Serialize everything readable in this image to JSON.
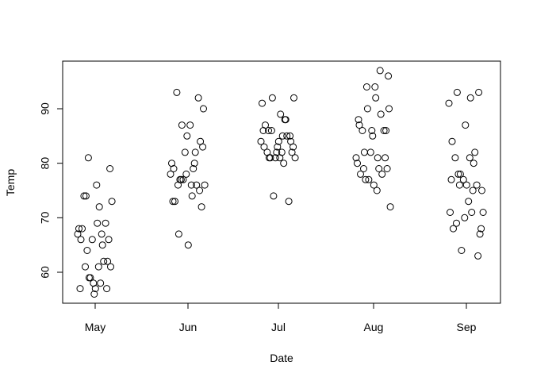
{
  "chart_data": {
    "type": "scatter",
    "title": "",
    "xlabel": "Date",
    "ylabel": "Temp",
    "x_axis_kind": "month-jittered",
    "x_tick_labels": [
      "May",
      "Jun",
      "Jul",
      "Aug",
      "Sep"
    ],
    "y_ticks": [
      60,
      70,
      80,
      90
    ],
    "y_tick_labels": [
      "60",
      "70",
      "80",
      "90"
    ],
    "ylim": [
      54.5,
      98.5
    ],
    "grid": false,
    "legend": "none",
    "marker": "open-circle",
    "points": [
      {
        "x": "May",
        "y": 67
      },
      {
        "x": "May",
        "y": 72
      },
      {
        "x": "May",
        "y": 74
      },
      {
        "x": "May",
        "y": 62
      },
      {
        "x": "May",
        "y": 56
      },
      {
        "x": "May",
        "y": 66
      },
      {
        "x": "May",
        "y": 65
      },
      {
        "x": "May",
        "y": 59
      },
      {
        "x": "May",
        "y": 61
      },
      {
        "x": "May",
        "y": 69
      },
      {
        "x": "May",
        "y": 74
      },
      {
        "x": "May",
        "y": 69
      },
      {
        "x": "May",
        "y": 66
      },
      {
        "x": "May",
        "y": 68
      },
      {
        "x": "May",
        "y": 58
      },
      {
        "x": "May",
        "y": 64
      },
      {
        "x": "May",
        "y": 66
      },
      {
        "x": "May",
        "y": 57
      },
      {
        "x": "May",
        "y": 68
      },
      {
        "x": "May",
        "y": 62
      },
      {
        "x": "May",
        "y": 59
      },
      {
        "x": "May",
        "y": 73
      },
      {
        "x": "May",
        "y": 61
      },
      {
        "x": "May",
        "y": 61
      },
      {
        "x": "May",
        "y": 57
      },
      {
        "x": "May",
        "y": 58
      },
      {
        "x": "May",
        "y": 57
      },
      {
        "x": "May",
        "y": 67
      },
      {
        "x": "May",
        "y": 81
      },
      {
        "x": "May",
        "y": 79
      },
      {
        "x": "May",
        "y": 76
      },
      {
        "x": "Jun",
        "y": 78
      },
      {
        "x": "Jun",
        "y": 74
      },
      {
        "x": "Jun",
        "y": 67
      },
      {
        "x": "Jun",
        "y": 84
      },
      {
        "x": "Jun",
        "y": 85
      },
      {
        "x": "Jun",
        "y": 79
      },
      {
        "x": "Jun",
        "y": 82
      },
      {
        "x": "Jun",
        "y": 87
      },
      {
        "x": "Jun",
        "y": 90
      },
      {
        "x": "Jun",
        "y": 87
      },
      {
        "x": "Jun",
        "y": 93
      },
      {
        "x": "Jun",
        "y": 92
      },
      {
        "x": "Jun",
        "y": 82
      },
      {
        "x": "Jun",
        "y": 80
      },
      {
        "x": "Jun",
        "y": 79
      },
      {
        "x": "Jun",
        "y": 77
      },
      {
        "x": "Jun",
        "y": 72
      },
      {
        "x": "Jun",
        "y": 65
      },
      {
        "x": "Jun",
        "y": 73
      },
      {
        "x": "Jun",
        "y": 76
      },
      {
        "x": "Jun",
        "y": 77
      },
      {
        "x": "Jun",
        "y": 76
      },
      {
        "x": "Jun",
        "y": 76
      },
      {
        "x": "Jun",
        "y": 76
      },
      {
        "x": "Jun",
        "y": 75
      },
      {
        "x": "Jun",
        "y": 78
      },
      {
        "x": "Jun",
        "y": 73
      },
      {
        "x": "Jun",
        "y": 80
      },
      {
        "x": "Jun",
        "y": 77
      },
      {
        "x": "Jun",
        "y": 83
      },
      {
        "x": "Jul",
        "y": 84
      },
      {
        "x": "Jul",
        "y": 85
      },
      {
        "x": "Jul",
        "y": 81
      },
      {
        "x": "Jul",
        "y": 84
      },
      {
        "x": "Jul",
        "y": 83
      },
      {
        "x": "Jul",
        "y": 83
      },
      {
        "x": "Jul",
        "y": 88
      },
      {
        "x": "Jul",
        "y": 92
      },
      {
        "x": "Jul",
        "y": 92
      },
      {
        "x": "Jul",
        "y": 89
      },
      {
        "x": "Jul",
        "y": 82
      },
      {
        "x": "Jul",
        "y": 73
      },
      {
        "x": "Jul",
        "y": 81
      },
      {
        "x": "Jul",
        "y": 91
      },
      {
        "x": "Jul",
        "y": 80
      },
      {
        "x": "Jul",
        "y": 81
      },
      {
        "x": "Jul",
        "y": 82
      },
      {
        "x": "Jul",
        "y": 84
      },
      {
        "x": "Jul",
        "y": 87
      },
      {
        "x": "Jul",
        "y": 85
      },
      {
        "x": "Jul",
        "y": 74
      },
      {
        "x": "Jul",
        "y": 81
      },
      {
        "x": "Jul",
        "y": 82
      },
      {
        "x": "Jul",
        "y": 86
      },
      {
        "x": "Jul",
        "y": 85
      },
      {
        "x": "Jul",
        "y": 82
      },
      {
        "x": "Jul",
        "y": 86
      },
      {
        "x": "Jul",
        "y": 88
      },
      {
        "x": "Jul",
        "y": 86
      },
      {
        "x": "Jul",
        "y": 83
      },
      {
        "x": "Jul",
        "y": 81
      },
      {
        "x": "Aug",
        "y": 81
      },
      {
        "x": "Aug",
        "y": 81
      },
      {
        "x": "Aug",
        "y": 82
      },
      {
        "x": "Aug",
        "y": 86
      },
      {
        "x": "Aug",
        "y": 85
      },
      {
        "x": "Aug",
        "y": 87
      },
      {
        "x": "Aug",
        "y": 89
      },
      {
        "x": "Aug",
        "y": 90
      },
      {
        "x": "Aug",
        "y": 90
      },
      {
        "x": "Aug",
        "y": 92
      },
      {
        "x": "Aug",
        "y": 86
      },
      {
        "x": "Aug",
        "y": 86
      },
      {
        "x": "Aug",
        "y": 82
      },
      {
        "x": "Aug",
        "y": 80
      },
      {
        "x": "Aug",
        "y": 79
      },
      {
        "x": "Aug",
        "y": 77
      },
      {
        "x": "Aug",
        "y": 79
      },
      {
        "x": "Aug",
        "y": 76
      },
      {
        "x": "Aug",
        "y": 78
      },
      {
        "x": "Aug",
        "y": 78
      },
      {
        "x": "Aug",
        "y": 77
      },
      {
        "x": "Aug",
        "y": 72
      },
      {
        "x": "Aug",
        "y": 75
      },
      {
        "x": "Aug",
        "y": 79
      },
      {
        "x": "Aug",
        "y": 81
      },
      {
        "x": "Aug",
        "y": 86
      },
      {
        "x": "Aug",
        "y": 88
      },
      {
        "x": "Aug",
        "y": 97
      },
      {
        "x": "Aug",
        "y": 94
      },
      {
        "x": "Aug",
        "y": 96
      },
      {
        "x": "Aug",
        "y": 94
      },
      {
        "x": "Sep",
        "y": 91
      },
      {
        "x": "Sep",
        "y": 92
      },
      {
        "x": "Sep",
        "y": 93
      },
      {
        "x": "Sep",
        "y": 93
      },
      {
        "x": "Sep",
        "y": 87
      },
      {
        "x": "Sep",
        "y": 84
      },
      {
        "x": "Sep",
        "y": 80
      },
      {
        "x": "Sep",
        "y": 78
      },
      {
        "x": "Sep",
        "y": 75
      },
      {
        "x": "Sep",
        "y": 73
      },
      {
        "x": "Sep",
        "y": 81
      },
      {
        "x": "Sep",
        "y": 76
      },
      {
        "x": "Sep",
        "y": 77
      },
      {
        "x": "Sep",
        "y": 71
      },
      {
        "x": "Sep",
        "y": 71
      },
      {
        "x": "Sep",
        "y": 78
      },
      {
        "x": "Sep",
        "y": 67
      },
      {
        "x": "Sep",
        "y": 76
      },
      {
        "x": "Sep",
        "y": 68
      },
      {
        "x": "Sep",
        "y": 82
      },
      {
        "x": "Sep",
        "y": 64
      },
      {
        "x": "Sep",
        "y": 71
      },
      {
        "x": "Sep",
        "y": 81
      },
      {
        "x": "Sep",
        "y": 69
      },
      {
        "x": "Sep",
        "y": 63
      },
      {
        "x": "Sep",
        "y": 70
      },
      {
        "x": "Sep",
        "y": 77
      },
      {
        "x": "Sep",
        "y": 75
      },
      {
        "x": "Sep",
        "y": 76
      },
      {
        "x": "Sep",
        "y": 68
      }
    ],
    "colors": {
      "marker_stroke": "#000000",
      "axis": "#000000",
      "background": "#ffffff"
    }
  }
}
